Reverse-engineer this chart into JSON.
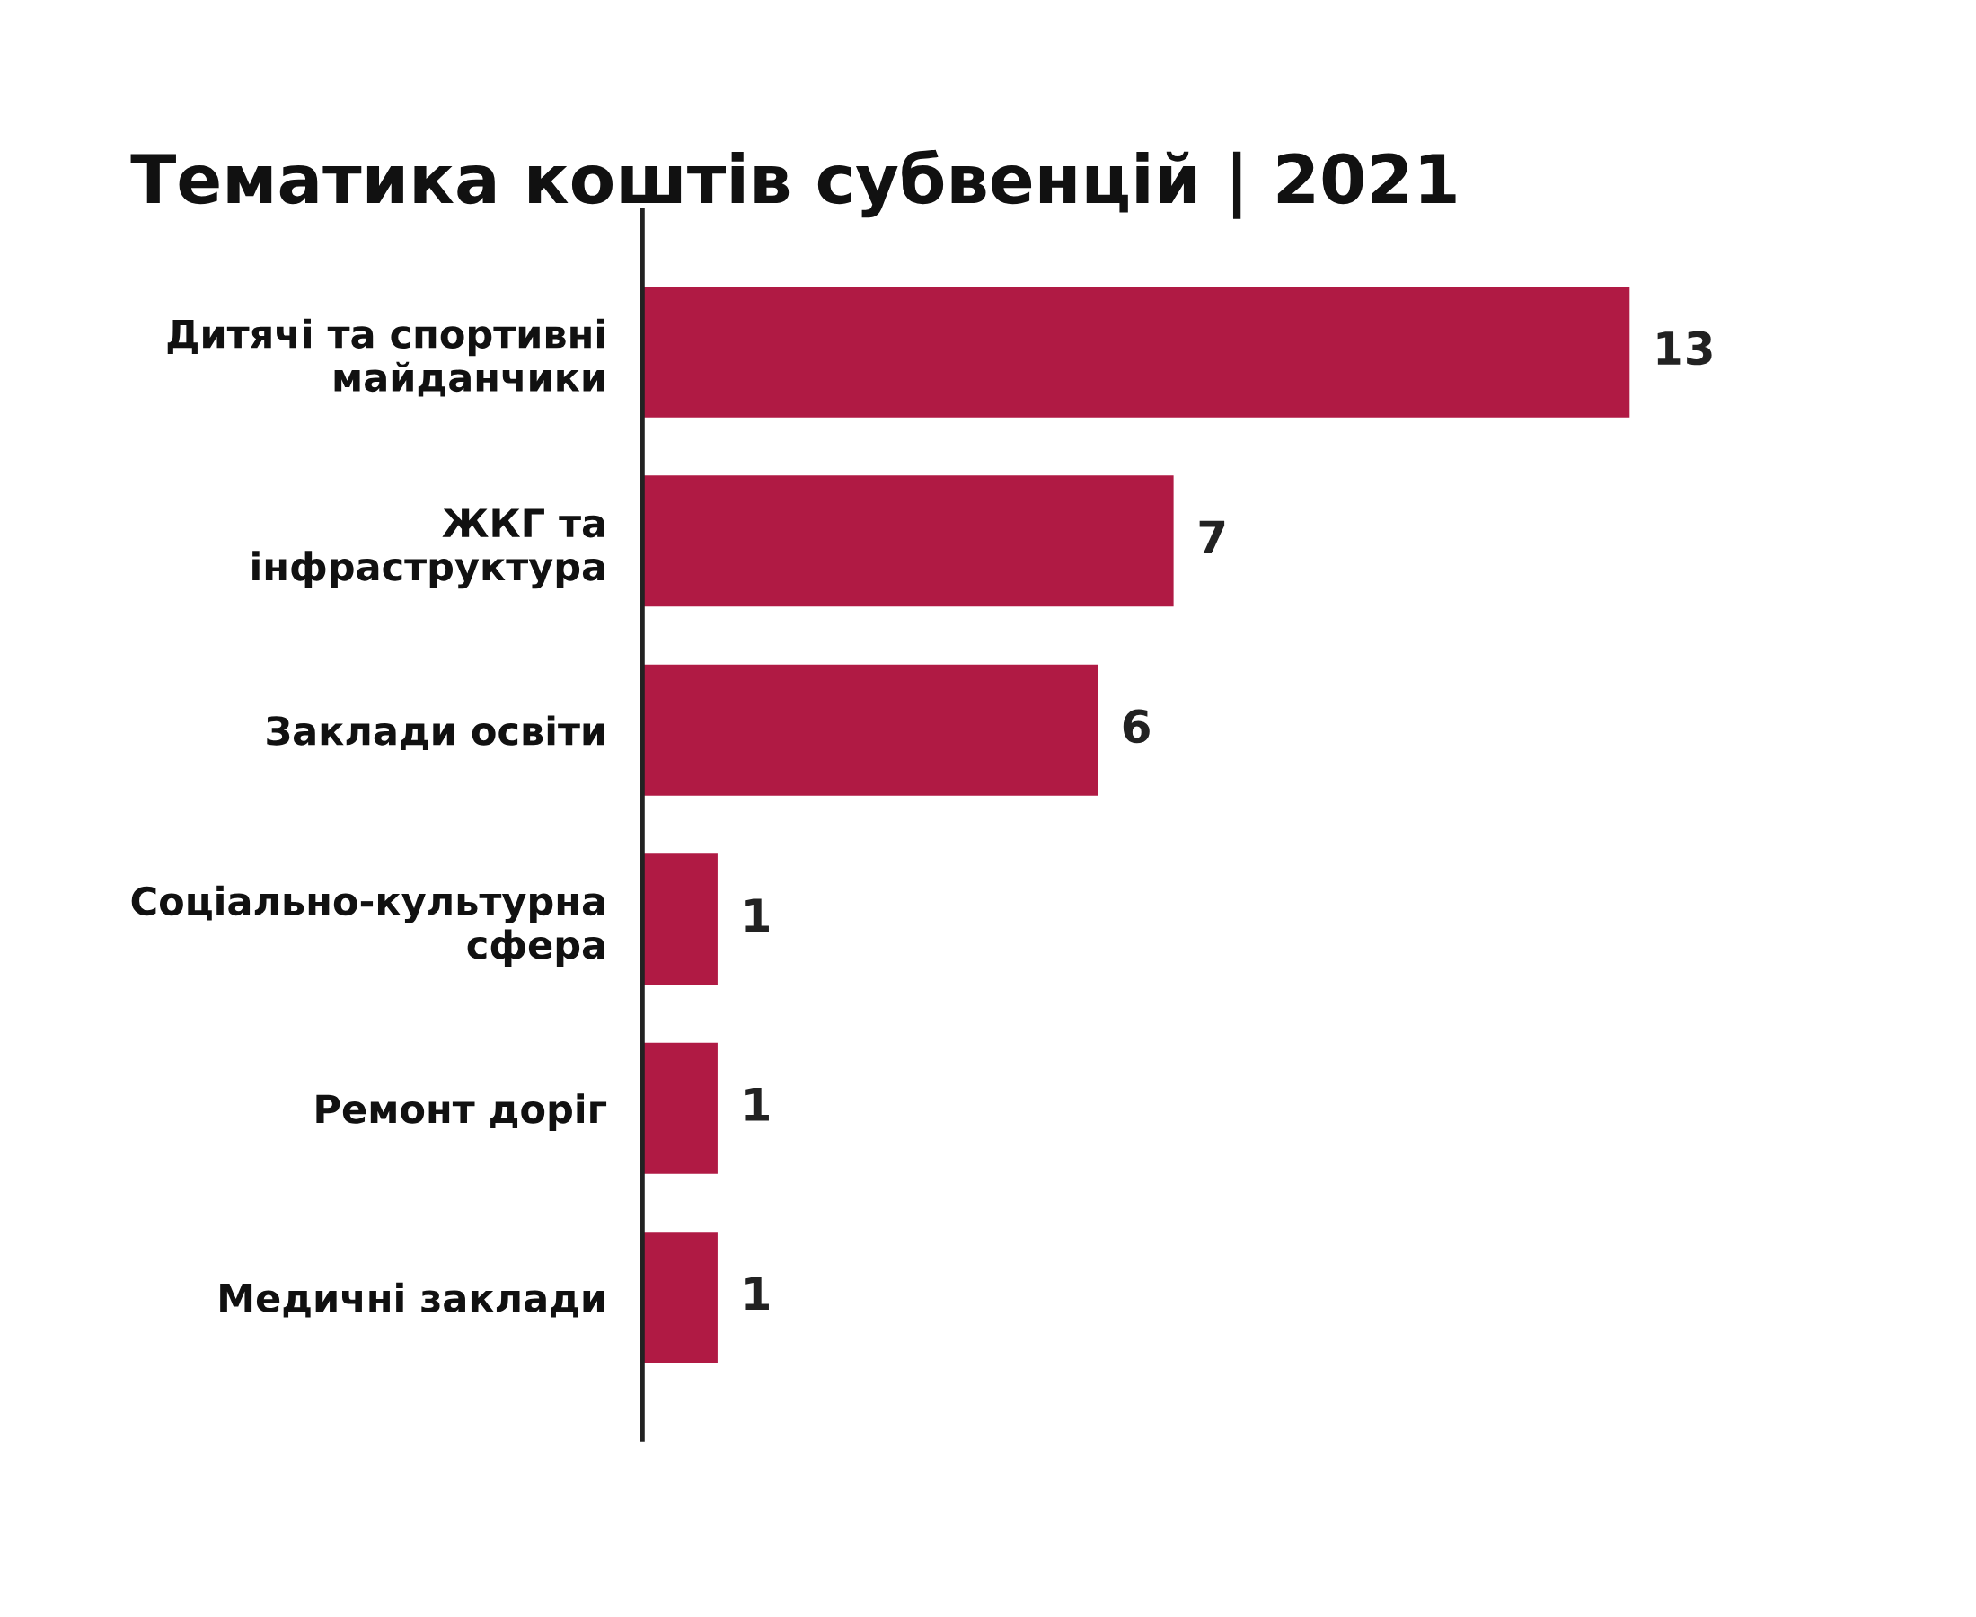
{
  "chart_data": {
    "type": "bar",
    "orientation": "horizontal",
    "title": "Тематика коштів субвенцій | 2021",
    "categories": [
      "Дитячі та спортивні\nмайданчики",
      "ЖКГ та\nінфраструктура",
      "Заклади освіти",
      "Соціально-культурна\nсфера",
      "Ремонт доріг",
      "Медичні заклади"
    ],
    "values": [
      13,
      7,
      6,
      1,
      1,
      1
    ],
    "color": "#b01a44",
    "data_labels": true,
    "grid": false,
    "legend": false
  }
}
